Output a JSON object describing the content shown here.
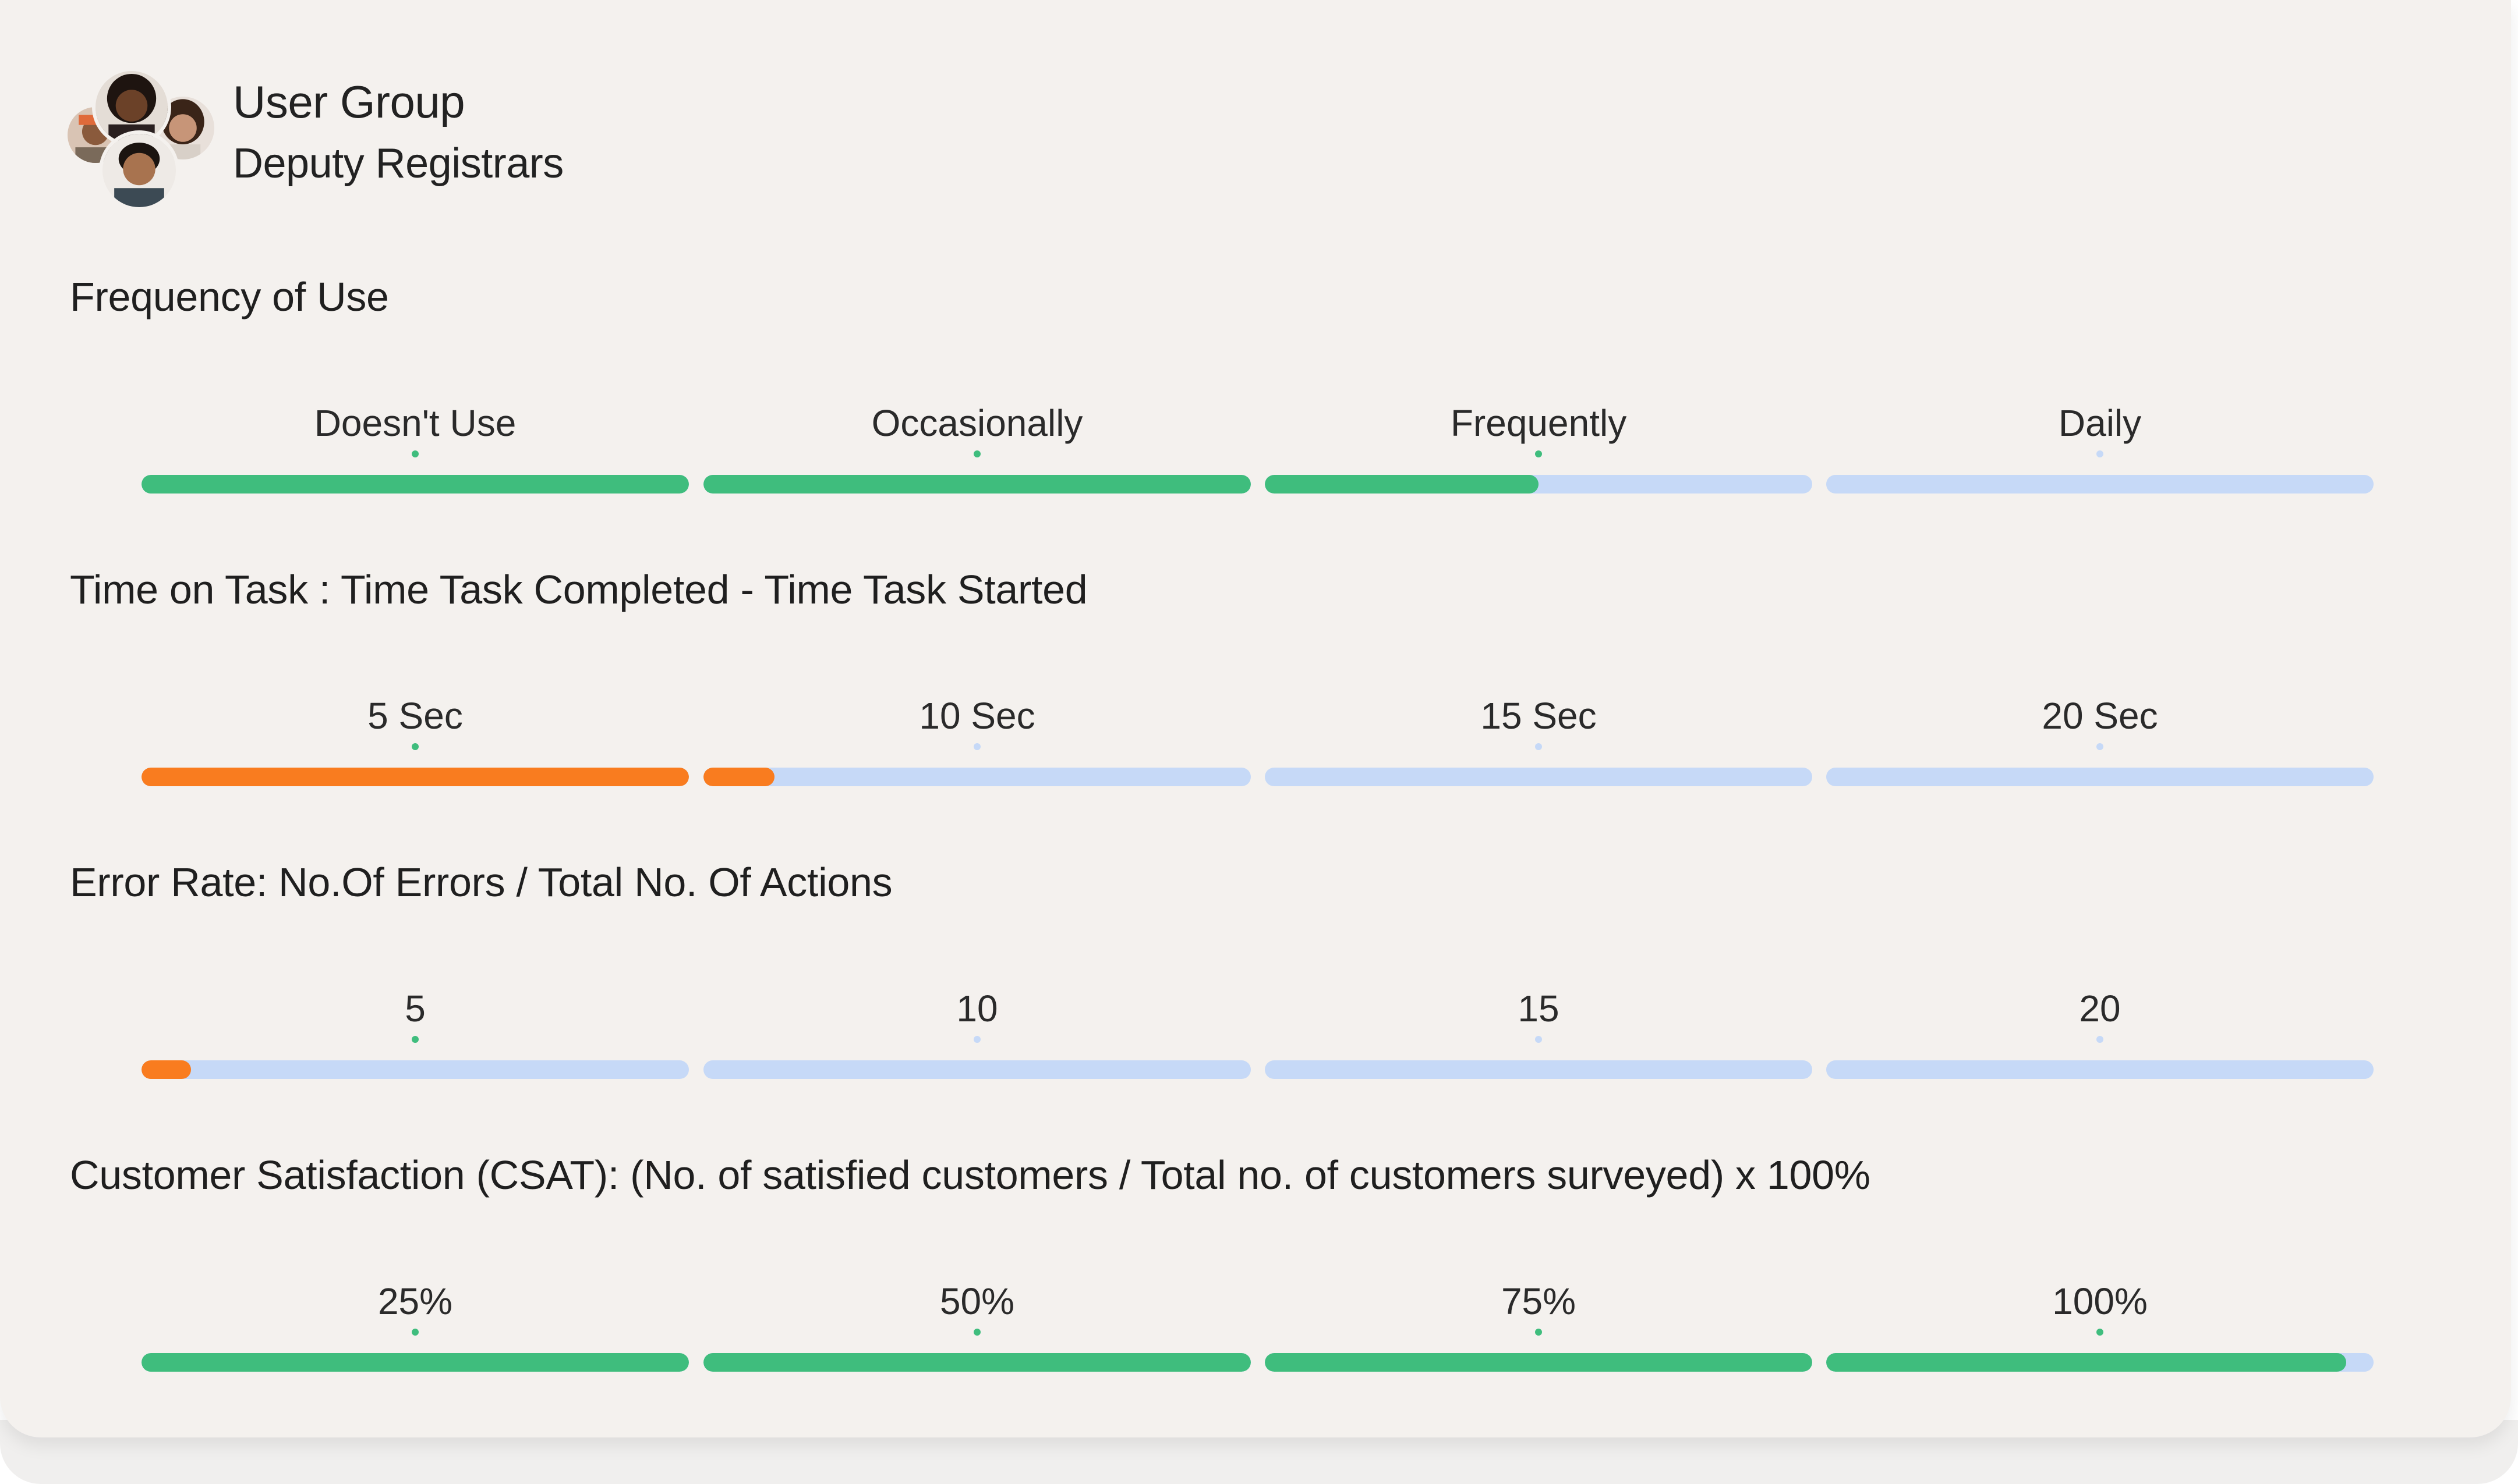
{
  "header": {
    "label": "User Group",
    "group_name": "Deputy Registrars",
    "avatar_icon": "user-avatars-stack"
  },
  "colors": {
    "card_bg": "#f4f1ee",
    "track": "#c6d9f7",
    "green": "#3fbd7d",
    "orange": "#f97c1f"
  },
  "metrics": [
    {
      "title": "Frequency of Use",
      "segments": [
        {
          "label": "Doesn't Use",
          "fill": 1.0,
          "color": "#3fbd7d",
          "dot": "#3fbd7d"
        },
        {
          "label": "Occasionally",
          "fill": 1.0,
          "color": "#3fbd7d",
          "dot": "#3fbd7d"
        },
        {
          "label": "Frequently",
          "fill": 0.5,
          "color": "#3fbd7d",
          "dot": "#3fbd7d"
        },
        {
          "label": "Daily",
          "fill": 0.0,
          "color": "#3fbd7d",
          "dot": "#c6d9f7"
        }
      ]
    },
    {
      "title": "Time on Task : Time Task Completed - Time Task Started",
      "segments": [
        {
          "label": "5 Sec",
          "fill": 1.0,
          "color": "#f97c1f",
          "dot": "#3fbd7d"
        },
        {
          "label": "10 Sec",
          "fill": 0.13,
          "color": "#f97c1f",
          "dot": "#c6d9f7"
        },
        {
          "label": "15 Sec",
          "fill": 0.0,
          "color": "#f97c1f",
          "dot": "#c6d9f7"
        },
        {
          "label": "20 Sec",
          "fill": 0.0,
          "color": "#f97c1f",
          "dot": "#c6d9f7"
        }
      ]
    },
    {
      "title": "Error Rate: No.Of Errors / Total No. Of Actions",
      "segments": [
        {
          "label": "5",
          "fill": 0.09,
          "color": "#f97c1f",
          "dot": "#3fbd7d"
        },
        {
          "label": "10",
          "fill": 0.0,
          "color": "#f97c1f",
          "dot": "#c6d9f7"
        },
        {
          "label": "15",
          "fill": 0.0,
          "color": "#f97c1f",
          "dot": "#c6d9f7"
        },
        {
          "label": "20",
          "fill": 0.0,
          "color": "#f97c1f",
          "dot": "#c6d9f7"
        }
      ]
    },
    {
      "title": "Customer Satisfaction (CSAT): (No. of satisfied customers / Total no. of customers surveyed) x 100%",
      "segments": [
        {
          "label": "25%",
          "fill": 1.0,
          "color": "#3fbd7d",
          "dot": "#3fbd7d"
        },
        {
          "label": "50%",
          "fill": 1.0,
          "color": "#3fbd7d",
          "dot": "#3fbd7d"
        },
        {
          "label": "75%",
          "fill": 1.0,
          "color": "#3fbd7d",
          "dot": "#3fbd7d"
        },
        {
          "label": "100%",
          "fill": 0.95,
          "color": "#3fbd7d",
          "dot": "#3fbd7d"
        }
      ]
    }
  ]
}
